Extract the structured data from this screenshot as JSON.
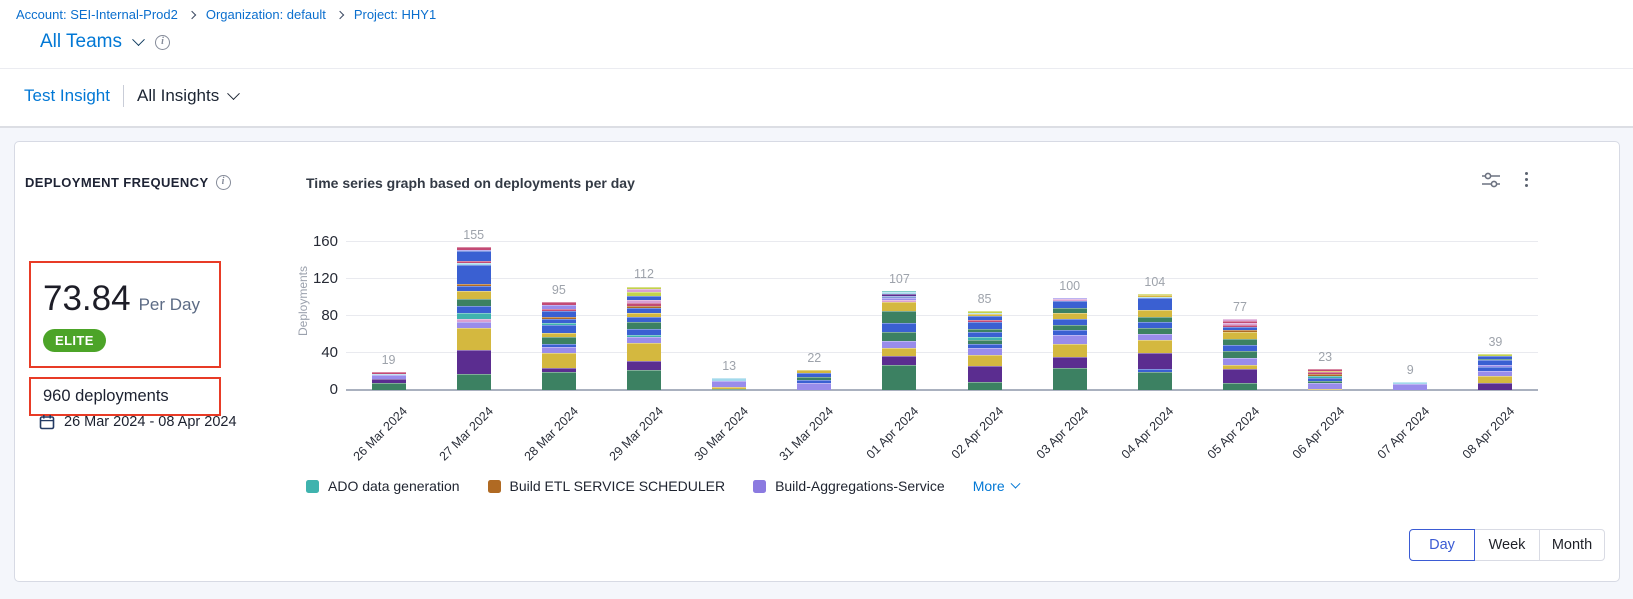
{
  "breadcrumb": {
    "items": [
      "Account: SEI-Internal-Prod2",
      "Organization: default",
      "Project: HHY1"
    ]
  },
  "teams": {
    "label": "All Teams"
  },
  "insight_bar": {
    "insight_name": "Test Insight",
    "scope_label": "All Insights",
    "date_range": "26 Mar 2024  -  08 Apr 2024"
  },
  "card": {
    "widget_title": "DEPLOYMENT FREQUENCY",
    "chart_title": "Time series graph based on deployments per day",
    "metric": {
      "value": "73.84",
      "unit": "Per Day",
      "badge": "ELITE",
      "badge_color": "#4ca428",
      "total": "960 deployments",
      "date_range": "26 Mar 2024 - 08 Apr 2024"
    },
    "granularity": {
      "options": [
        "Day",
        "Week",
        "Month"
      ],
      "selected": "Day"
    }
  },
  "chart_data": {
    "type": "bar",
    "stacked": true,
    "title": "Time series graph based on deployments per day",
    "ylabel": "Deployments",
    "xlabel": "",
    "ylim": [
      0,
      160
    ],
    "yticks": [
      0,
      40,
      80,
      120,
      160
    ],
    "grid": true,
    "legend_position": "bottom",
    "categories": [
      "26 Mar 2024",
      "27 Mar 2024",
      "28 Mar 2024",
      "29 Mar 2024",
      "30 Mar 2024",
      "31 Mar 2024",
      "01 Apr 2024",
      "02 Apr 2024",
      "03 Apr 2024",
      "04 Apr 2024",
      "05 Apr 2024",
      "06 Apr 2024",
      "07 Apr 2024",
      "08 Apr 2024"
    ],
    "totals": [
      19,
      155,
      95,
      112,
      13,
      22,
      107,
      85,
      100,
      104,
      77,
      23,
      9,
      39
    ],
    "palette": {
      "green": "#3c8162",
      "darkpurple": "#5b2d90",
      "gold": "#d4b83f",
      "lavender": "#998ceb",
      "blue": "#3a60d2",
      "teal": "#3fb3ae",
      "orange": "#b06a23",
      "crimson": "#c34a74",
      "lightblue": "#a2d9ec",
      "pink": "#d99fd3",
      "lime": "#c3d24b",
      "slate": "#8098d8"
    },
    "bars": [
      {
        "segments": [
          [
            "green",
            8
          ],
          [
            "darkpurple",
            4
          ],
          [
            "lavender",
            4
          ],
          [
            "lightblue",
            1
          ],
          [
            "crimson",
            2
          ]
        ]
      },
      {
        "segments": [
          [
            "green",
            17
          ],
          [
            "darkpurple",
            26
          ],
          [
            "gold",
            24
          ],
          [
            "lavender",
            7
          ],
          [
            "pink",
            3
          ],
          [
            "teal",
            6
          ],
          [
            "blue",
            8
          ],
          [
            "green",
            7
          ],
          [
            "gold",
            9
          ],
          [
            "blue",
            5
          ],
          [
            "orange",
            3
          ],
          [
            "blue",
            20
          ],
          [
            "lightblue",
            2
          ],
          [
            "crimson",
            3
          ],
          [
            "blue",
            10
          ],
          [
            "lavender",
            2
          ],
          [
            "crimson",
            3
          ]
        ]
      },
      {
        "segments": [
          [
            "green",
            19
          ],
          [
            "darkpurple",
            5
          ],
          [
            "gold",
            16
          ],
          [
            "lavender",
            6
          ],
          [
            "blue",
            4
          ],
          [
            "green",
            7
          ],
          [
            "gold",
            5
          ],
          [
            "blue",
            8
          ],
          [
            "teal",
            3
          ],
          [
            "blue",
            4
          ],
          [
            "orange",
            2
          ],
          [
            "blue",
            6
          ],
          [
            "crimson",
            3
          ],
          [
            "lavender",
            4
          ],
          [
            "crimson",
            3
          ]
        ]
      },
      {
        "segments": [
          [
            "green",
            22
          ],
          [
            "darkpurple",
            9
          ],
          [
            "gold",
            20
          ],
          [
            "lavender",
            6
          ],
          [
            "teal",
            3
          ],
          [
            "blue",
            6
          ],
          [
            "green",
            8
          ],
          [
            "blue",
            5
          ],
          [
            "gold",
            4
          ],
          [
            "blue",
            6
          ],
          [
            "orange",
            2
          ],
          [
            "crimson",
            3
          ],
          [
            "pink",
            3
          ],
          [
            "blue",
            5
          ],
          [
            "lime",
            4
          ],
          [
            "pink",
            3
          ],
          [
            "lime",
            3
          ]
        ]
      },
      {
        "segments": [
          [
            "green",
            1
          ],
          [
            "gold",
            2
          ],
          [
            "lavender",
            7
          ],
          [
            "lightblue",
            3
          ]
        ]
      },
      {
        "segments": [
          [
            "lavender",
            8
          ],
          [
            "blue",
            3
          ],
          [
            "green",
            3
          ],
          [
            "blue",
            4
          ],
          [
            "gold",
            4
          ]
        ]
      },
      {
        "segments": [
          [
            "green",
            27
          ],
          [
            "darkpurple",
            10
          ],
          [
            "gold",
            8
          ],
          [
            "lavender",
            8
          ],
          [
            "green",
            10
          ],
          [
            "blue",
            10
          ],
          [
            "green",
            12
          ],
          [
            "gold",
            10
          ],
          [
            "pink",
            2
          ],
          [
            "lavender",
            3
          ],
          [
            "slate",
            2
          ],
          [
            "darkpurple",
            2
          ],
          [
            "lightblue",
            2
          ],
          [
            "teal",
            1
          ]
        ]
      },
      {
        "segments": [
          [
            "green",
            9
          ],
          [
            "darkpurple",
            17
          ],
          [
            "gold",
            12
          ],
          [
            "lavender",
            7
          ],
          [
            "blue",
            5
          ],
          [
            "green",
            4
          ],
          [
            "teal",
            3
          ],
          [
            "blue",
            6
          ],
          [
            "green",
            3
          ],
          [
            "blue",
            8
          ],
          [
            "crimson",
            2
          ],
          [
            "blue",
            4
          ],
          [
            "gold",
            2
          ],
          [
            "lightblue",
            1
          ],
          [
            "lime",
            2
          ]
        ]
      },
      {
        "segments": [
          [
            "green",
            24
          ],
          [
            "darkpurple",
            12
          ],
          [
            "gold",
            14
          ],
          [
            "lavender",
            9
          ],
          [
            "blue",
            6
          ],
          [
            "green",
            5
          ],
          [
            "blue",
            7
          ],
          [
            "gold",
            6
          ],
          [
            "green",
            6
          ],
          [
            "blue",
            7
          ],
          [
            "pink",
            2
          ],
          [
            "lavender",
            2
          ]
        ]
      },
      {
        "segments": [
          [
            "green",
            20
          ],
          [
            "blue",
            3
          ],
          [
            "darkpurple",
            17
          ],
          [
            "gold",
            14
          ],
          [
            "lavender",
            7
          ],
          [
            "green",
            6
          ],
          [
            "blue",
            7
          ],
          [
            "green",
            5
          ],
          [
            "gold",
            8
          ],
          [
            "blue",
            12
          ],
          [
            "lightblue",
            2
          ],
          [
            "gold",
            2
          ],
          [
            "lime",
            1
          ]
        ]
      },
      {
        "segments": [
          [
            "green",
            8
          ],
          [
            "darkpurple",
            15
          ],
          [
            "gold",
            4
          ],
          [
            "lavender",
            8
          ],
          [
            "green",
            7
          ],
          [
            "blue",
            7
          ],
          [
            "green",
            6
          ],
          [
            "gold",
            8
          ],
          [
            "orange",
            2
          ],
          [
            "blue",
            3
          ],
          [
            "crimson",
            2
          ],
          [
            "pink",
            2
          ],
          [
            "teal",
            1
          ],
          [
            "crimson",
            2
          ],
          [
            "pink",
            2
          ]
        ]
      },
      {
        "segments": [
          [
            "gold",
            1
          ],
          [
            "lavender",
            7
          ],
          [
            "green",
            2
          ],
          [
            "blue",
            3
          ],
          [
            "teal",
            2
          ],
          [
            "orange",
            2
          ],
          [
            "crimson",
            2
          ],
          [
            "gold",
            2
          ],
          [
            "crimson",
            2
          ]
        ]
      },
      {
        "segments": [
          [
            "lavender",
            7
          ],
          [
            "lightblue",
            2
          ]
        ]
      },
      {
        "segments": [
          [
            "darkpurple",
            8
          ],
          [
            "gold",
            7
          ],
          [
            "lavender",
            6
          ],
          [
            "blue",
            4
          ],
          [
            "lavender",
            2
          ],
          [
            "blue",
            5
          ],
          [
            "green",
            2
          ],
          [
            "blue",
            3
          ],
          [
            "lime",
            2
          ]
        ]
      }
    ],
    "legend": {
      "entries": [
        {
          "label": "ADO data generation",
          "color": "#3fb3ae"
        },
        {
          "label": "Build ETL SERVICE SCHEDULER",
          "color": "#b06a23"
        },
        {
          "label": "Build-Aggregations-Service",
          "color": "#8b7ae0"
        }
      ],
      "more_label": "More"
    }
  }
}
